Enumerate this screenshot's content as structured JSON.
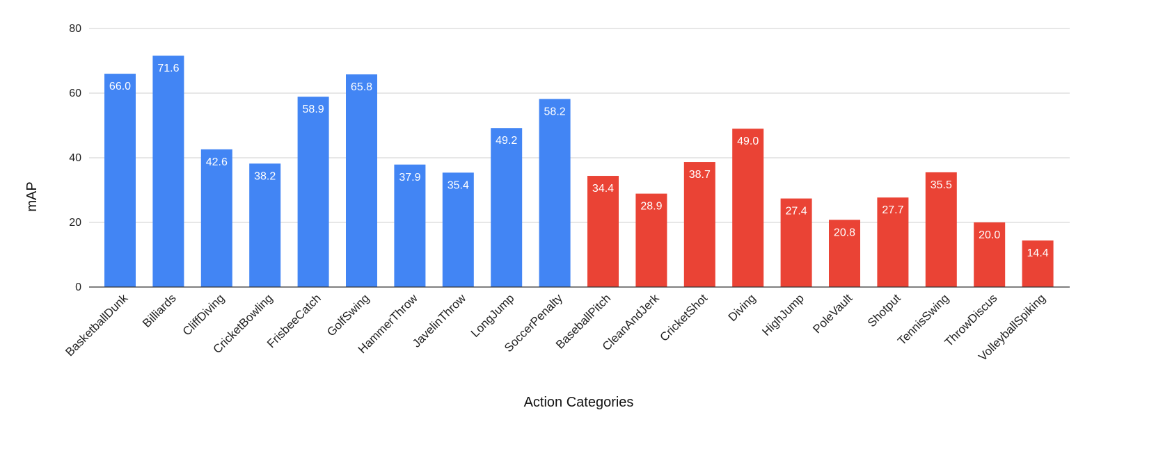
{
  "chart_data": {
    "type": "bar",
    "title": "",
    "xlabel": "Action Categories",
    "ylabel": "mAP",
    "ylim": [
      0,
      80
    ],
    "yticks": [
      0,
      20,
      40,
      60,
      80
    ],
    "grid": true,
    "legend": "none",
    "categories": [
      "BasketballDunk",
      "Billiards",
      "CliffDiving",
      "CricketBowling",
      "FrisbeeCatch",
      "GolfSwing",
      "HammerThrow",
      "JavelinThrow",
      "LongJump",
      "SoccerPenalty",
      "BaseballPitch",
      "CleanAndJerk",
      "CricketShot",
      "Diving",
      "HighJump",
      "PoleVault",
      "Shotput",
      "TennisSwing",
      "ThrowDiscus",
      "VolleyballSpiking"
    ],
    "values": [
      66.0,
      71.6,
      42.6,
      38.2,
      58.9,
      65.8,
      37.9,
      35.4,
      49.2,
      58.2,
      34.4,
      28.9,
      38.7,
      49.0,
      27.4,
      20.8,
      27.7,
      35.5,
      20.0,
      14.4
    ],
    "value_labels": [
      "66.0",
      "71.6",
      "42.6",
      "38.2",
      "58.9",
      "65.8",
      "37.9",
      "35.4",
      "49.2",
      "58.2",
      "34.4",
      "28.9",
      "38.7",
      "49.0",
      "27.4",
      "20.8",
      "27.7",
      "35.5",
      "20.0",
      "14.4"
    ],
    "bar_colors": [
      "#4285f4",
      "#4285f4",
      "#4285f4",
      "#4285f4",
      "#4285f4",
      "#4285f4",
      "#4285f4",
      "#4285f4",
      "#4285f4",
      "#4285f4",
      "#ea4335",
      "#ea4335",
      "#ea4335",
      "#ea4335",
      "#ea4335",
      "#ea4335",
      "#ea4335",
      "#ea4335",
      "#ea4335",
      "#ea4335"
    ]
  }
}
